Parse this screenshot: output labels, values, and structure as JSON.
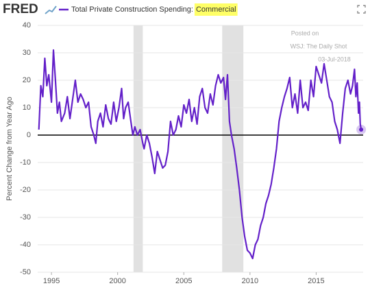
{
  "chart_data": {
    "type": "line",
    "logo": "FRED",
    "title": "Total Private Construction Spending:",
    "title_highlight": "Commercial",
    "ylabel": "Percent Change from Year Ago",
    "annotation": [
      "Posted on",
      "WSJ: The Daily Shot",
      "03-Jul-2018"
    ],
    "color": "#6320c9",
    "highlight_color": "#ffff66",
    "recession_color": "#e1e1e1",
    "grid": true,
    "xlim": [
      1993.96,
      2018.55
    ],
    "xticks": [
      1995,
      2000,
      2005,
      2010,
      2015
    ],
    "ylim": [
      -50,
      40
    ],
    "yticks": [
      -50,
      -40,
      -30,
      -20,
      -10,
      0,
      10,
      20,
      30,
      40
    ],
    "recessions": [
      [
        2001.2,
        2001.9
      ],
      [
        2007.9,
        2009.5
      ]
    ],
    "x": [
      1994.05,
      1994.2,
      1994.35,
      1994.5,
      1994.65,
      1994.8,
      1995.0,
      1995.15,
      1995.3,
      1995.45,
      1995.6,
      1995.75,
      1996.0,
      1996.2,
      1996.4,
      1996.6,
      1996.8,
      1997.0,
      1997.2,
      1997.4,
      1997.6,
      1997.8,
      1998.0,
      1998.2,
      1998.35,
      1998.5,
      1998.7,
      1998.9,
      1999.1,
      1999.3,
      1999.5,
      1999.7,
      1999.9,
      2000.1,
      2000.3,
      2000.45,
      2000.6,
      2000.8,
      2001.0,
      2001.15,
      2001.3,
      2001.5,
      2001.7,
      2001.9,
      2002.0,
      2002.2,
      2002.4,
      2002.6,
      2002.8,
      2003.0,
      2003.2,
      2003.4,
      2003.6,
      2003.8,
      2004.0,
      2004.2,
      2004.4,
      2004.6,
      2004.8,
      2005.0,
      2005.2,
      2005.4,
      2005.6,
      2005.8,
      2006.0,
      2006.2,
      2006.4,
      2006.6,
      2006.8,
      2007.0,
      2007.2,
      2007.4,
      2007.6,
      2007.8,
      2008.0,
      2008.15,
      2008.3,
      2008.45,
      2008.6,
      2008.8,
      2009.0,
      2009.2,
      2009.4,
      2009.6,
      2009.8,
      2010.0,
      2010.2,
      2010.4,
      2010.6,
      2010.8,
      2011.0,
      2011.2,
      2011.4,
      2011.6,
      2011.8,
      2012.0,
      2012.2,
      2012.4,
      2012.6,
      2012.8,
      2013.0,
      2013.2,
      2013.4,
      2013.6,
      2013.8,
      2014.0,
      2014.2,
      2014.4,
      2014.6,
      2014.8,
      2015.0,
      2015.2,
      2015.4,
      2015.6,
      2015.8,
      2016.0,
      2016.2,
      2016.4,
      2016.6,
      2016.8,
      2017.0,
      2017.2,
      2017.4,
      2017.6,
      2017.75,
      2017.9,
      2018.0,
      2018.1,
      2018.2,
      2018.27,
      2018.33,
      2018.4
    ],
    "values": [
      2,
      18,
      14,
      28,
      18,
      22,
      12,
      31,
      20,
      8,
      12,
      5,
      8,
      14,
      6,
      13,
      20,
      12,
      15,
      13,
      10,
      12,
      3,
      0,
      -3,
      5,
      8,
      3,
      11,
      6,
      4,
      12,
      5,
      10,
      17,
      6,
      10,
      12,
      5,
      0,
      3,
      0,
      2,
      -3,
      -5,
      0,
      -3,
      -8,
      -14,
      -6,
      -9,
      -12,
      -11,
      -6,
      5,
      0,
      2,
      7,
      3,
      11,
      8,
      13,
      5,
      10,
      4,
      14,
      17,
      10,
      8,
      15,
      11,
      18,
      22,
      19,
      21,
      13,
      22,
      5,
      0,
      -5,
      -12,
      -20,
      -30,
      -37,
      -42,
      -43,
      -45,
      -40,
      -38,
      -33,
      -30,
      -25,
      -22,
      -18,
      -12,
      -5,
      5,
      10,
      14,
      17,
      21,
      10,
      15,
      8,
      20,
      10,
      12,
      9,
      20,
      14,
      25,
      22,
      19,
      26,
      20,
      14,
      12,
      5,
      2,
      -3,
      8,
      17,
      20,
      15,
      18,
      24,
      14,
      19,
      8,
      12,
      4,
      2
    ]
  }
}
